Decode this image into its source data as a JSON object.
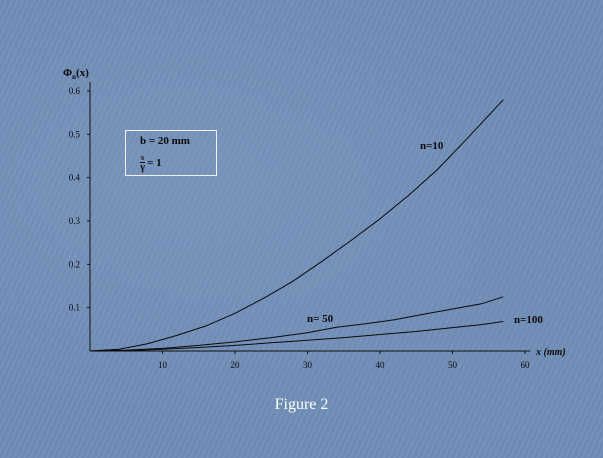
{
  "caption": "Figure 2",
  "chart_data": {
    "type": "line",
    "title": "",
    "ylabel_main": "Φ",
    "ylabel_sub": "n",
    "ylabel_arg": "(x)",
    "xlabel": "x (mm)",
    "xlim": [
      0,
      60
    ],
    "ylim": [
      0,
      0.6
    ],
    "x_ticks": [
      10,
      20,
      30,
      40,
      50,
      60
    ],
    "y_ticks": [
      0.1,
      0.2,
      0.3,
      0.4,
      0.5,
      0.6
    ],
    "y_tick_labels": [
      "0.1",
      "0.2",
      "0.3",
      "0.4",
      "0.5",
      "0.6"
    ],
    "grid": false,
    "series": [
      {
        "name": "n=10",
        "x": [
          0,
          4,
          8,
          12,
          16,
          20,
          24,
          28,
          32,
          36,
          40,
          44,
          48,
          52,
          57
        ],
        "y": [
          0,
          0.004,
          0.017,
          0.036,
          0.058,
          0.087,
          0.122,
          0.161,
          0.207,
          0.255,
          0.305,
          0.36,
          0.42,
          0.49,
          0.58
        ]
      },
      {
        "name": "n= 50",
        "x": [
          0,
          5,
          10,
          15,
          20,
          25,
          30,
          34,
          38,
          42,
          46,
          50,
          54,
          57
        ],
        "y": [
          0,
          0.002,
          0.006,
          0.013,
          0.021,
          0.031,
          0.042,
          0.055,
          0.063,
          0.072,
          0.085,
          0.097,
          0.109,
          0.125
        ]
      },
      {
        "name": "n=100",
        "x": [
          0,
          5,
          10,
          15,
          20,
          25,
          30,
          35,
          40,
          45,
          50,
          54,
          57
        ],
        "y": [
          0,
          0.001,
          0.004,
          0.008,
          0.013,
          0.019,
          0.025,
          0.031,
          0.038,
          0.045,
          0.054,
          0.061,
          0.068
        ]
      }
    ],
    "annotation": {
      "b_line": "b = 20 mm",
      "ratio_numerator": "s",
      "ratio_denominator": "γ",
      "ratio_value": "= 1"
    }
  }
}
